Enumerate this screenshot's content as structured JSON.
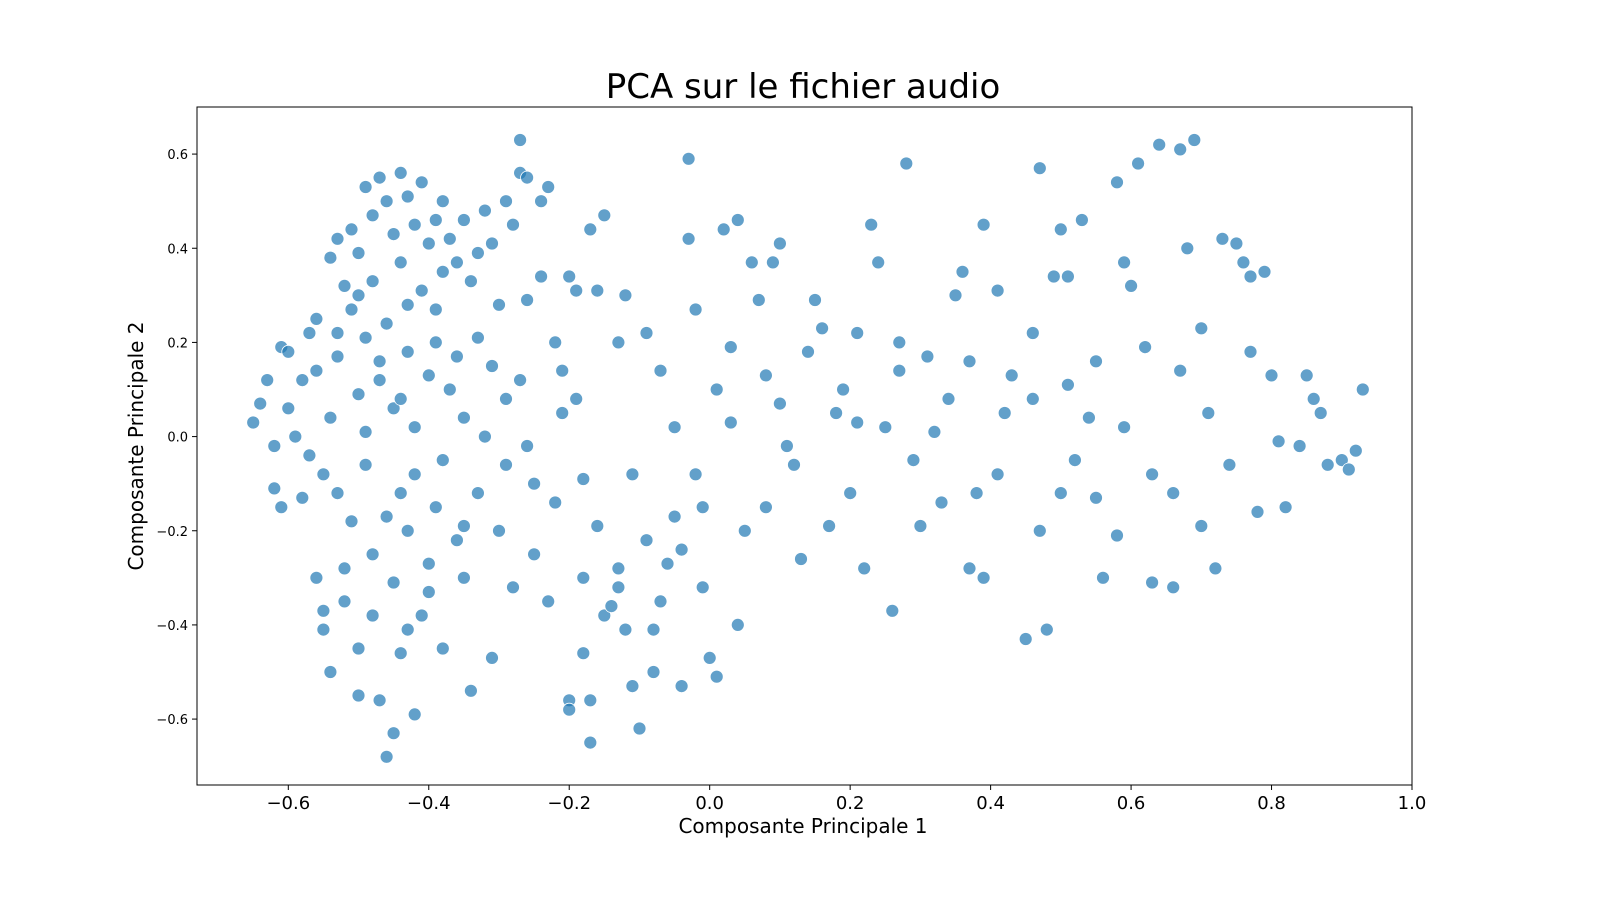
{
  "chart_data": {
    "type": "scatter",
    "title": "PCA sur le fichier audio",
    "xlabel": "Composante Principale 1",
    "ylabel": "Composante Principale 2",
    "xlim": [
      -0.73,
      1.0
    ],
    "ylim": [
      -0.74,
      0.7
    ],
    "x_ticks": [
      -0.6,
      -0.4,
      -0.2,
      0.0,
      0.2,
      0.4,
      0.6,
      0.8,
      1.0
    ],
    "x_tick_labels": [
      "−0.6",
      "−0.4",
      "−0.2",
      "0.0",
      "0.2",
      "0.4",
      "0.6",
      "0.8",
      "1.0"
    ],
    "y_ticks": [
      0.6,
      0.4,
      0.2,
      0.0,
      -0.2,
      -0.4,
      -0.6
    ],
    "y_tick_labels": [
      "0.6",
      "0.4",
      "0.2",
      "0.0",
      "−0.2",
      "−0.4",
      "−0.6"
    ],
    "grid": false,
    "legend": "none",
    "marker_color": "#1f77b4",
    "marker_edge_color": "#ffffff",
    "series": [
      {
        "points": [
          [
            -0.65,
            0.03
          ],
          [
            -0.64,
            0.07
          ],
          [
            -0.63,
            0.12
          ],
          [
            -0.62,
            -0.02
          ],
          [
            -0.62,
            -0.11
          ],
          [
            -0.61,
            0.19
          ],
          [
            -0.61,
            -0.15
          ],
          [
            -0.6,
            0.06
          ],
          [
            -0.6,
            0.18
          ],
          [
            -0.59,
            0.0
          ],
          [
            -0.58,
            -0.13
          ],
          [
            -0.58,
            0.12
          ],
          [
            -0.57,
            0.22
          ],
          [
            -0.57,
            -0.04
          ],
          [
            -0.56,
            0.25
          ],
          [
            -0.56,
            0.14
          ],
          [
            -0.56,
            -0.3
          ],
          [
            -0.55,
            -0.37
          ],
          [
            -0.55,
            -0.41
          ],
          [
            -0.55,
            -0.08
          ],
          [
            -0.54,
            0.38
          ],
          [
            -0.54,
            0.04
          ],
          [
            -0.54,
            -0.5
          ],
          [
            -0.53,
            0.42
          ],
          [
            -0.53,
            0.17
          ],
          [
            -0.53,
            -0.12
          ],
          [
            -0.52,
            0.32
          ],
          [
            -0.52,
            -0.28
          ],
          [
            -0.52,
            -0.35
          ],
          [
            -0.51,
            0.44
          ],
          [
            -0.51,
            0.27
          ],
          [
            -0.51,
            -0.18
          ],
          [
            -0.5,
            0.39
          ],
          [
            -0.5,
            0.09
          ],
          [
            -0.5,
            -0.45
          ],
          [
            -0.5,
            -0.55
          ],
          [
            -0.49,
            0.53
          ],
          [
            -0.49,
            0.21
          ],
          [
            -0.49,
            -0.06
          ],
          [
            -0.48,
            0.47
          ],
          [
            -0.48,
            0.33
          ],
          [
            -0.48,
            -0.25
          ],
          [
            -0.48,
            -0.38
          ],
          [
            -0.47,
            0.55
          ],
          [
            -0.47,
            0.12
          ],
          [
            -0.47,
            -0.56
          ],
          [
            -0.46,
            0.5
          ],
          [
            -0.46,
            0.24
          ],
          [
            -0.46,
            -0.68
          ],
          [
            -0.45,
            0.43
          ],
          [
            -0.45,
            0.06
          ],
          [
            -0.45,
            -0.31
          ],
          [
            -0.45,
            -0.63
          ],
          [
            -0.44,
            0.56
          ],
          [
            -0.44,
            0.37
          ],
          [
            -0.44,
            -0.12
          ],
          [
            -0.44,
            -0.46
          ],
          [
            -0.43,
            0.51
          ],
          [
            -0.43,
            0.28
          ],
          [
            -0.43,
            0.18
          ],
          [
            -0.43,
            -0.2
          ],
          [
            -0.42,
            0.45
          ],
          [
            -0.42,
            0.02
          ],
          [
            -0.42,
            -0.59
          ],
          [
            -0.41,
            0.54
          ],
          [
            -0.41,
            0.31
          ],
          [
            -0.41,
            -0.38
          ],
          [
            -0.4,
            0.41
          ],
          [
            -0.4,
            0.13
          ],
          [
            -0.4,
            -0.27
          ],
          [
            -0.39,
            0.46
          ],
          [
            -0.39,
            0.2
          ],
          [
            -0.39,
            -0.15
          ],
          [
            -0.38,
            0.5
          ],
          [
            -0.38,
            0.35
          ],
          [
            -0.38,
            -0.05
          ],
          [
            -0.38,
            -0.45
          ],
          [
            -0.37,
            0.42
          ],
          [
            -0.37,
            0.1
          ],
          [
            -0.36,
            0.37
          ],
          [
            -0.36,
            -0.22
          ],
          [
            -0.35,
            0.46
          ],
          [
            -0.35,
            0.04
          ],
          [
            -0.35,
            -0.3
          ],
          [
            -0.34,
            0.33
          ],
          [
            -0.34,
            -0.54
          ],
          [
            -0.33,
            0.21
          ],
          [
            -0.33,
            -0.12
          ],
          [
            -0.32,
            0.48
          ],
          [
            -0.32,
            0.0
          ],
          [
            -0.31,
            0.41
          ],
          [
            -0.31,
            -0.47
          ],
          [
            -0.3,
            0.28
          ],
          [
            -0.3,
            -0.2
          ],
          [
            -0.29,
            0.5
          ],
          [
            -0.29,
            0.08
          ],
          [
            -0.28,
            0.45
          ],
          [
            -0.28,
            -0.32
          ],
          [
            -0.27,
            0.56
          ],
          [
            -0.27,
            0.63
          ],
          [
            -0.26,
            0.55
          ],
          [
            -0.26,
            0.29
          ],
          [
            -0.25,
            -0.1
          ],
          [
            -0.24,
            0.5
          ],
          [
            -0.24,
            0.34
          ],
          [
            -0.23,
            0.53
          ],
          [
            -0.23,
            -0.35
          ],
          [
            -0.22,
            0.2
          ],
          [
            -0.21,
            0.05
          ],
          [
            -0.2,
            0.34
          ],
          [
            -0.2,
            -0.56
          ],
          [
            -0.2,
            -0.58
          ],
          [
            -0.19,
            0.31
          ],
          [
            -0.18,
            -0.3
          ],
          [
            -0.18,
            -0.46
          ],
          [
            -0.17,
            0.44
          ],
          [
            -0.17,
            -0.56
          ],
          [
            -0.17,
            -0.65
          ],
          [
            -0.16,
            0.31
          ],
          [
            -0.15,
            0.47
          ],
          [
            -0.15,
            -0.38
          ],
          [
            -0.13,
            0.2
          ],
          [
            -0.13,
            -0.32
          ],
          [
            -0.12,
            0.3
          ],
          [
            -0.11,
            -0.08
          ],
          [
            -0.11,
            -0.53
          ],
          [
            -0.1,
            -0.62
          ],
          [
            -0.09,
            0.22
          ],
          [
            -0.08,
            -0.5
          ],
          [
            -0.07,
            0.14
          ],
          [
            -0.06,
            -0.27
          ],
          [
            -0.05,
            0.02
          ],
          [
            -0.04,
            -0.53
          ],
          [
            -0.03,
            0.59
          ],
          [
            -0.03,
            0.42
          ],
          [
            -0.02,
            0.27
          ],
          [
            -0.01,
            -0.32
          ],
          [
            0.0,
            -0.47
          ],
          [
            0.01,
            -0.51
          ],
          [
            0.02,
            0.44
          ],
          [
            0.03,
            0.19
          ],
          [
            0.04,
            0.46
          ],
          [
            0.04,
            -0.4
          ],
          [
            0.06,
            0.37
          ],
          [
            0.07,
            0.29
          ],
          [
            0.08,
            -0.15
          ],
          [
            0.09,
            0.37
          ],
          [
            0.1,
            0.41
          ],
          [
            0.11,
            -0.02
          ],
          [
            0.13,
            -0.26
          ],
          [
            0.15,
            0.29
          ],
          [
            0.17,
            -0.19
          ],
          [
            0.18,
            0.05
          ],
          [
            0.2,
            -0.12
          ],
          [
            0.21,
            0.22
          ],
          [
            0.22,
            -0.28
          ],
          [
            0.23,
            0.45
          ],
          [
            0.24,
            0.37
          ],
          [
            0.26,
            -0.37
          ],
          [
            0.27,
            0.14
          ],
          [
            0.28,
            0.58
          ],
          [
            0.29,
            -0.05
          ],
          [
            0.31,
            0.17
          ],
          [
            0.33,
            -0.14
          ],
          [
            0.35,
            0.3
          ],
          [
            0.36,
            0.35
          ],
          [
            0.37,
            -0.28
          ],
          [
            0.39,
            0.45
          ],
          [
            0.39,
            -0.3
          ],
          [
            0.41,
            0.31
          ],
          [
            0.43,
            0.13
          ],
          [
            0.45,
            -0.43
          ],
          [
            0.46,
            0.22
          ],
          [
            0.47,
            0.57
          ],
          [
            0.48,
            -0.41
          ],
          [
            0.49,
            0.34
          ],
          [
            0.5,
            0.44
          ],
          [
            0.51,
            0.34
          ],
          [
            0.52,
            -0.05
          ],
          [
            0.53,
            0.46
          ],
          [
            0.55,
            0.16
          ],
          [
            0.56,
            -0.3
          ],
          [
            0.58,
            0.54
          ],
          [
            0.59,
            0.37
          ],
          [
            0.6,
            0.32
          ],
          [
            0.61,
            0.58
          ],
          [
            0.63,
            -0.31
          ],
          [
            0.64,
            0.62
          ],
          [
            0.66,
            -0.32
          ],
          [
            0.67,
            0.61
          ],
          [
            0.68,
            0.4
          ],
          [
            0.69,
            0.63
          ],
          [
            0.7,
            0.23
          ],
          [
            0.72,
            -0.28
          ],
          [
            0.73,
            0.42
          ],
          [
            0.75,
            0.41
          ],
          [
            0.76,
            0.37
          ],
          [
            0.77,
            0.34
          ],
          [
            0.78,
            -0.16
          ],
          [
            0.79,
            0.35
          ],
          [
            0.8,
            0.13
          ],
          [
            0.81,
            -0.01
          ],
          [
            0.82,
            -0.15
          ],
          [
            0.84,
            -0.02
          ],
          [
            0.85,
            0.13
          ],
          [
            0.86,
            0.08
          ],
          [
            0.87,
            0.05
          ],
          [
            0.88,
            -0.06
          ],
          [
            0.9,
            -0.05
          ],
          [
            0.91,
            -0.07
          ],
          [
            0.92,
            -0.03
          ],
          [
            0.93,
            0.1
          ],
          [
            -0.5,
            0.3
          ],
          [
            -0.47,
            0.16
          ],
          [
            -0.44,
            0.08
          ],
          [
            -0.42,
            -0.08
          ],
          [
            -0.4,
            -0.33
          ],
          [
            -0.36,
            0.17
          ],
          [
            -0.33,
            0.39
          ],
          [
            -0.29,
            -0.06
          ],
          [
            -0.27,
            0.12
          ],
          [
            -0.25,
            -0.25
          ],
          [
            -0.22,
            -0.14
          ],
          [
            -0.19,
            0.08
          ],
          [
            -0.16,
            -0.19
          ],
          [
            -0.14,
            -0.36
          ],
          [
            -0.12,
            -0.41
          ],
          [
            -0.09,
            -0.22
          ],
          [
            -0.07,
            -0.35
          ],
          [
            -0.05,
            -0.17
          ],
          [
            -0.02,
            -0.08
          ],
          [
            0.01,
            0.1
          ],
          [
            0.05,
            -0.2
          ],
          [
            0.1,
            0.07
          ],
          [
            0.14,
            0.18
          ],
          [
            0.19,
            0.1
          ],
          [
            0.25,
            0.02
          ],
          [
            0.3,
            -0.19
          ],
          [
            0.34,
            0.08
          ],
          [
            0.38,
            -0.12
          ],
          [
            0.42,
            0.05
          ],
          [
            0.47,
            -0.2
          ],
          [
            0.51,
            0.11
          ],
          [
            0.55,
            -0.13
          ],
          [
            0.59,
            0.02
          ],
          [
            0.63,
            -0.08
          ],
          [
            0.67,
            0.14
          ],
          [
            0.71,
            0.05
          ],
          [
            0.74,
            -0.06
          ],
          [
            0.77,
            0.18
          ],
          [
            -0.53,
            0.22
          ],
          [
            -0.49,
            0.01
          ],
          [
            -0.46,
            -0.17
          ],
          [
            -0.43,
            -0.41
          ],
          [
            -0.39,
            0.27
          ],
          [
            -0.35,
            -0.19
          ],
          [
            -0.31,
            0.15
          ],
          [
            -0.26,
            -0.02
          ],
          [
            -0.21,
            0.14
          ],
          [
            -0.18,
            -0.09
          ],
          [
            -0.13,
            -0.28
          ],
          [
            -0.08,
            -0.41
          ],
          [
            -0.04,
            -0.24
          ],
          [
            -0.01,
            -0.15
          ],
          [
            0.03,
            0.03
          ],
          [
            0.08,
            0.13
          ],
          [
            0.12,
            -0.06
          ],
          [
            0.16,
            0.23
          ],
          [
            0.21,
            0.03
          ],
          [
            0.27,
            0.2
          ],
          [
            0.32,
            0.01
          ],
          [
            0.37,
            0.16
          ],
          [
            0.41,
            -0.08
          ],
          [
            0.46,
            0.08
          ],
          [
            0.5,
            -0.12
          ],
          [
            0.54,
            0.04
          ],
          [
            0.58,
            -0.21
          ],
          [
            0.62,
            0.19
          ],
          [
            0.66,
            -0.12
          ],
          [
            0.7,
            -0.19
          ]
        ]
      }
    ]
  }
}
